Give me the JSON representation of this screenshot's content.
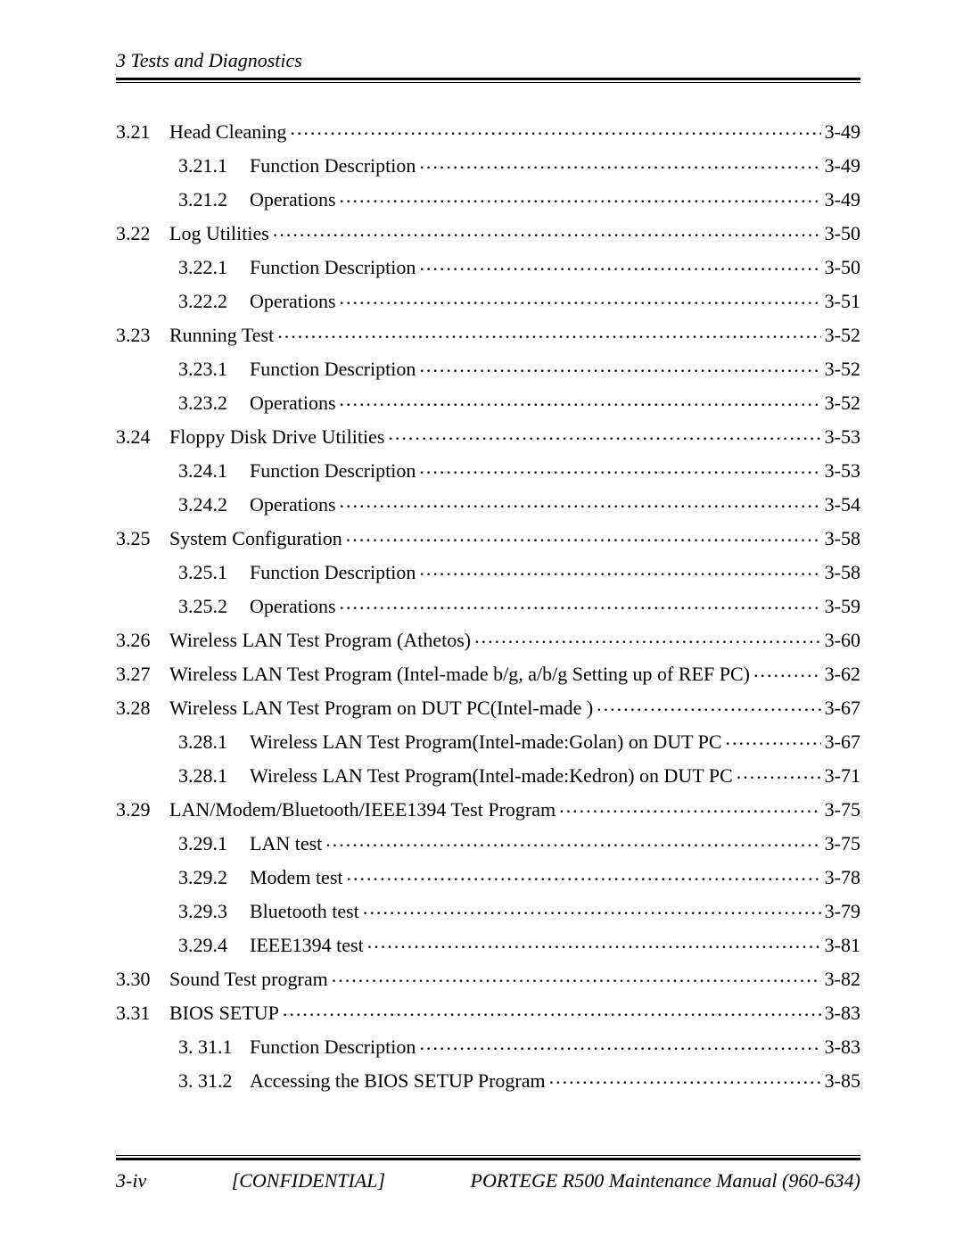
{
  "header": {
    "title": "3  Tests and Diagnostics"
  },
  "toc": [
    {
      "level": 1,
      "num": "3.21",
      "title": "Head Cleaning",
      "page": "3-49"
    },
    {
      "level": 2,
      "num": "3.21.1",
      "title": "Function Description",
      "page": "3-49"
    },
    {
      "level": 2,
      "num": "3.21.2",
      "title": "Operations",
      "page": "3-49"
    },
    {
      "level": 1,
      "num": "3.22",
      "title": "Log Utilities",
      "page": "3-50"
    },
    {
      "level": 2,
      "num": "3.22.1",
      "title": "Function Description",
      "page": "3-50"
    },
    {
      "level": 2,
      "num": "3.22.2",
      "title": "Operations",
      "page": "3-51"
    },
    {
      "level": 1,
      "num": "3.23",
      "title": "Running Test",
      "page": "3-52"
    },
    {
      "level": 2,
      "num": "3.23.1",
      "title": "Function Description",
      "page": "3-52"
    },
    {
      "level": 2,
      "num": "3.23.2",
      "title": "Operations",
      "page": "3-52"
    },
    {
      "level": 1,
      "num": "3.24",
      "title": "Floppy Disk Drive Utilities",
      "page": "3-53"
    },
    {
      "level": 2,
      "num": "3.24.1",
      "title": "Function Description",
      "page": "3-53"
    },
    {
      "level": 2,
      "num": "3.24.2",
      "title": "Operations",
      "page": "3-54"
    },
    {
      "level": 1,
      "num": "3.25",
      "title": "System Configuration",
      "page": "3-58"
    },
    {
      "level": 2,
      "num": "3.25.1",
      "title": "Function Description",
      "page": "3-58"
    },
    {
      "level": 2,
      "num": "3.25.2",
      "title": "Operations",
      "page": "3-59"
    },
    {
      "level": 1,
      "num": "3.26",
      "title": "Wireless LAN Test Program (Athetos)",
      "page": "3-60"
    },
    {
      "level": 1,
      "num": "3.27",
      "title": "Wireless LAN Test Program (Intel-made b/g, a/b/g    Setting up of REF PC)",
      "page": "3-62"
    },
    {
      "level": 1,
      "num": "3.28",
      "title": "Wireless LAN Test Program on DUT PC(Intel-made )",
      "page": "3-67"
    },
    {
      "level": 2,
      "num": "3.28.1",
      "title": "Wireless LAN Test Program(Intel-made:Golan) on DUT PC",
      "page": "3-67"
    },
    {
      "level": 2,
      "num": "3.28.1",
      "title": "Wireless LAN Test Program(Intel-made:Kedron) on DUT PC",
      "page": "3-71"
    },
    {
      "level": 1,
      "num": "3.29",
      "title": "LAN/Modem/Bluetooth/IEEE1394 Test Program",
      "page": "3-75"
    },
    {
      "level": 2,
      "num": "3.29.1",
      "title": "LAN test",
      "page": "3-75"
    },
    {
      "level": 2,
      "num": "3.29.2",
      "title": "Modem test",
      "page": "3-78"
    },
    {
      "level": 2,
      "num": "3.29.3",
      "title": "Bluetooth test",
      "page": "3-79"
    },
    {
      "level": 2,
      "num": "3.29.4",
      "title": "IEEE1394 test",
      "page": "3-81"
    },
    {
      "level": 1,
      "num": "3.30",
      "title": "Sound Test program",
      "page": "3-82"
    },
    {
      "level": 1,
      "num": "3.31",
      "title": "BIOS SETUP",
      "page": "3-83"
    },
    {
      "level": 2,
      "num": "3. 31.1",
      "title": "Function Description",
      "page": "3-83"
    },
    {
      "level": 2,
      "num": "3. 31.2",
      "title": "Accessing the BIOS SETUP Program",
      "page": "3-85"
    }
  ],
  "footer": {
    "left": "3-iv",
    "center": "[CONFIDENTIAL]",
    "right": "PORTEGE R500 Maintenance Manual (960-634)"
  },
  "style": {
    "font_family": "Times New Roman",
    "font_size_pt": 12,
    "text_color": "#000000",
    "background_color": "#ffffff",
    "rule_color": "#000000"
  }
}
